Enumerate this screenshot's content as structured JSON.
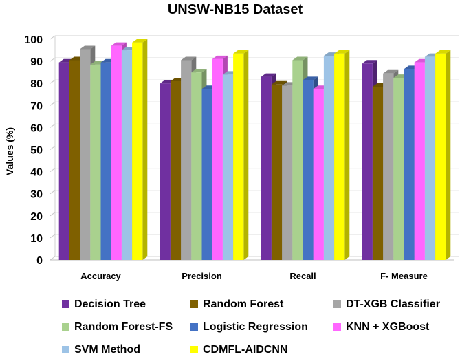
{
  "chart_data": {
    "type": "bar",
    "title": "UNSW-NB15 Dataset",
    "xlabel": "",
    "ylabel": "Values (%)",
    "ylim": [
      0,
      100
    ],
    "yticks": [
      "0",
      "10",
      "20",
      "30",
      "40",
      "50",
      "60",
      "70",
      "80",
      "90",
      "100"
    ],
    "grid": true,
    "legend_position": "bottom",
    "categories": [
      "Accuracy",
      "Precision",
      "Recall",
      "F- Measure"
    ],
    "series": [
      {
        "name": "Decision Tree",
        "color": "#7030A0",
        "values": [
          89.5,
          80.0,
          83.0,
          89.0
        ]
      },
      {
        "name": "Random Forest",
        "color": "#7F6000",
        "values": [
          90.5,
          81.0,
          79.5,
          78.5
        ]
      },
      {
        "name": "DT-XGB Classifier",
        "color": "#A6A6A6",
        "values": [
          95.5,
          90.5,
          79.0,
          84.5
        ]
      },
      {
        "name": "Random Forest-FS",
        "color": "#A9D18E",
        "values": [
          88.5,
          85.0,
          90.5,
          82.5
        ]
      },
      {
        "name": "Logistic Regression",
        "color": "#4472C4",
        "values": [
          89.5,
          77.5,
          81.5,
          86.5
        ]
      },
      {
        "name": "KNN + XGBoost",
        "color": "#FF66FF",
        "values": [
          97.0,
          91.0,
          77.5,
          89.5
        ]
      },
      {
        "name": "SVM Method",
        "color": "#9DC3E6",
        "values": [
          95.0,
          84.0,
          92.5,
          92.0
        ]
      },
      {
        "name": "CDMFL-AIDCNN",
        "color": "#FFFF00",
        "values": [
          98.5,
          93.5,
          93.5,
          93.5
        ]
      }
    ]
  }
}
